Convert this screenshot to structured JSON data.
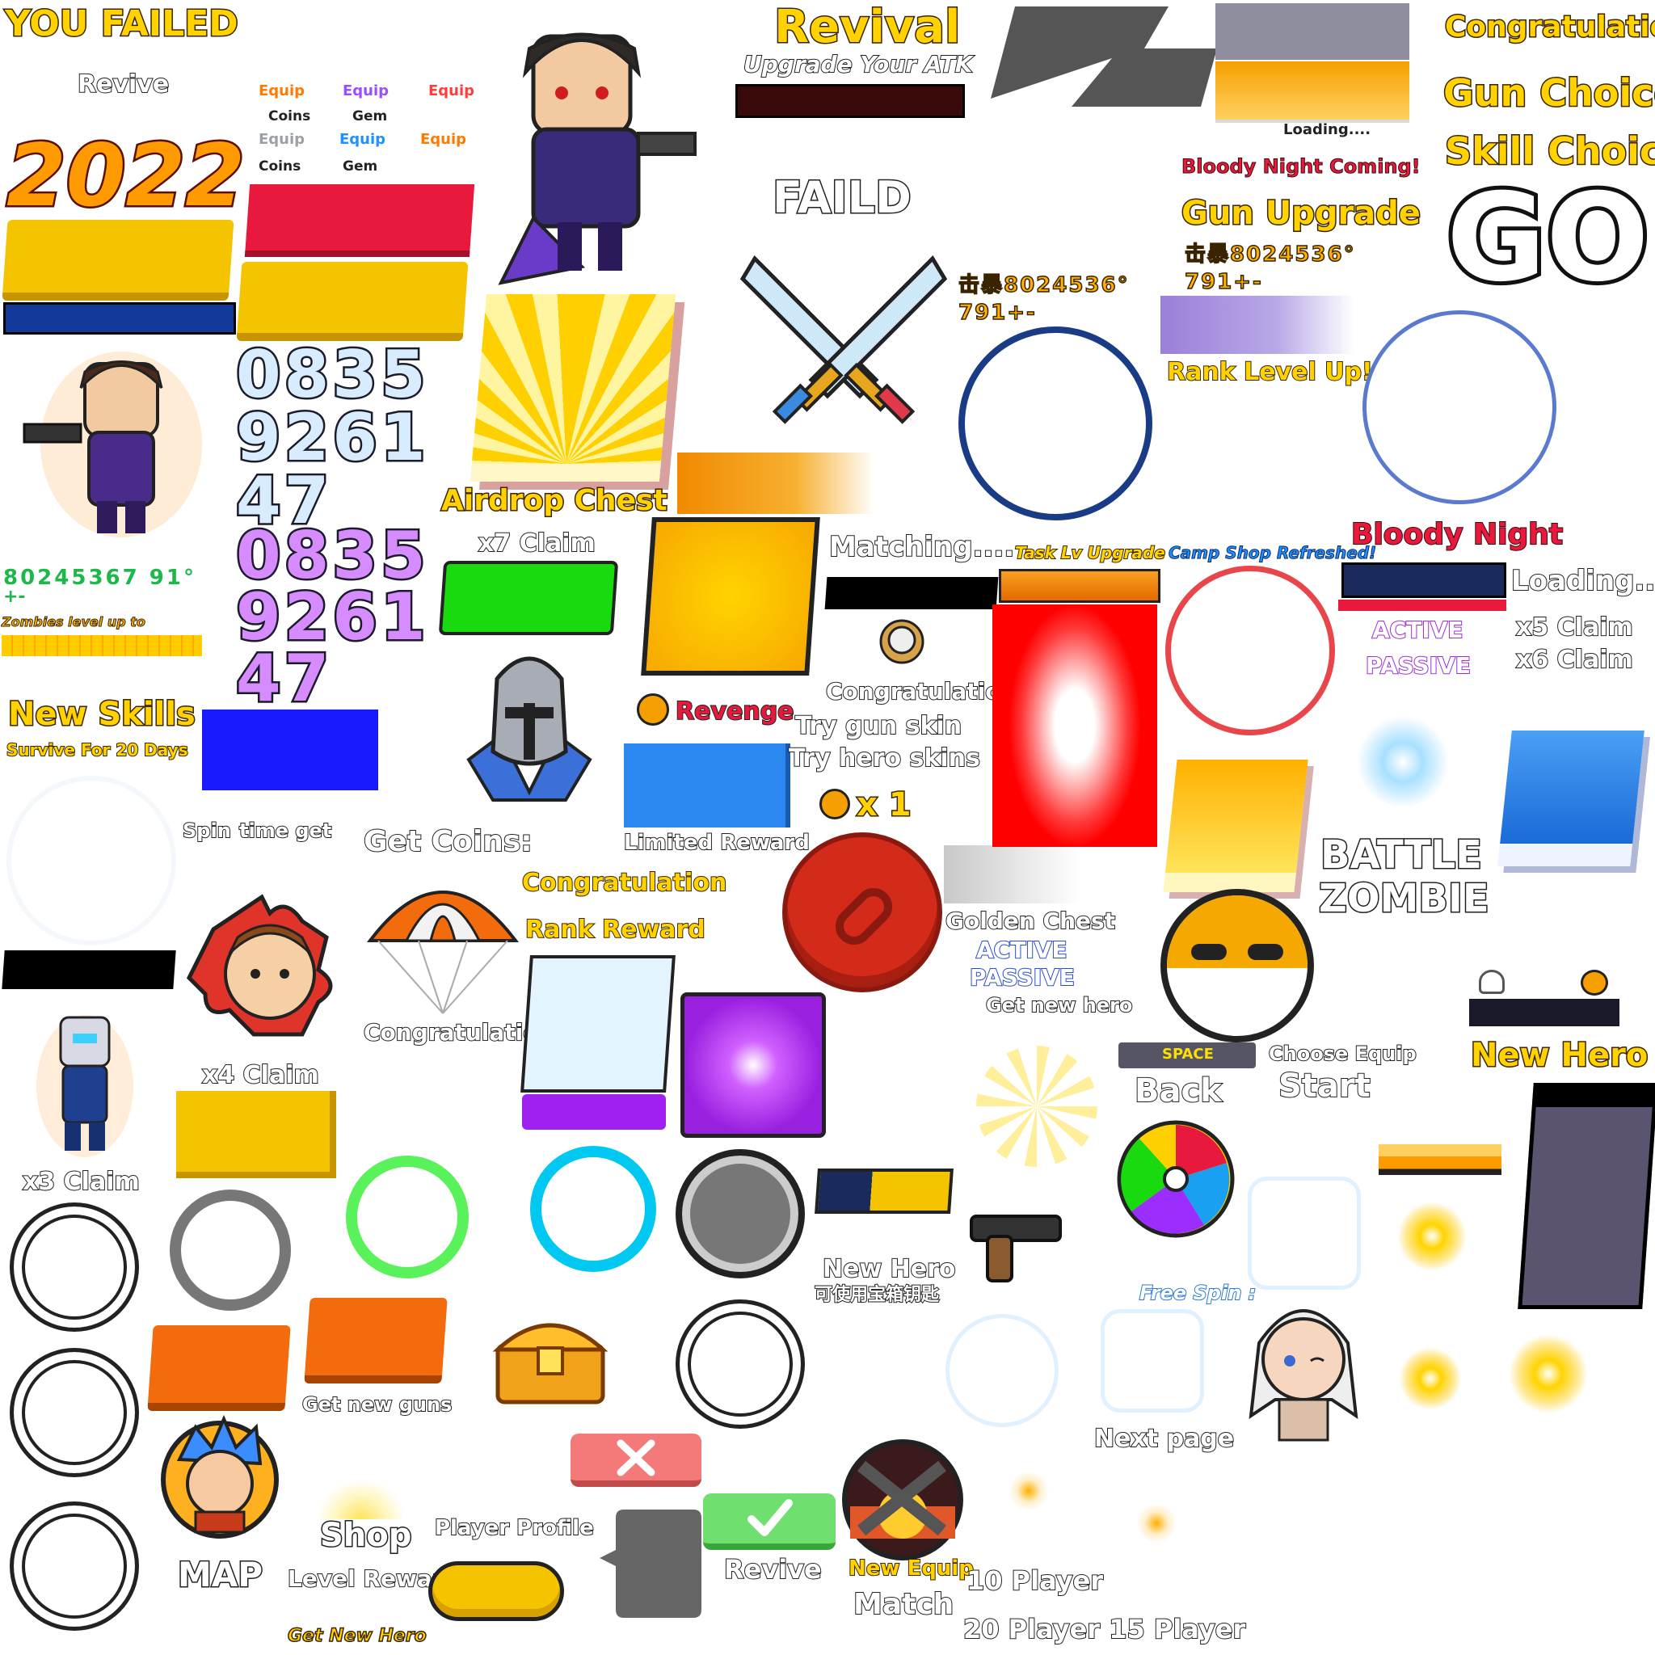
{
  "labels": {
    "you_failed": "YOU FAILED",
    "revive_top": "Revive",
    "year": "2022",
    "revival": "Revival",
    "upgrade_atk": "Upgrade Your ATK",
    "faild": "FAILD",
    "loading_small": "Loading....",
    "bloody_night_coming": "Bloody Night Coming!",
    "gun_upgrade": "Gun Upgrade",
    "congratulation_top": "Congratulation",
    "gun_choice": "Gun Choice",
    "skill_choice": "Skill Choice",
    "go": "GO",
    "rank_level_up": "Rank Level Up!",
    "airdrop_chest": "Airdrop Chest",
    "x7_claim": "x7 Claim",
    "matching": "Matching....",
    "task_lv_upgrade": "Task Lv Upgrade",
    "camp_shop_refreshed": "Camp Shop Refreshed!",
    "bloody_night": "Bloody Night",
    "loading_big": "Loading....",
    "active_1": "ACTIVE",
    "passive_1": "PASSIVE",
    "x5_claim": "x5 Claim",
    "x6_claim": "x6 Claim",
    "zombies_level": "Zombies level up to",
    "new_skills": "New Skills",
    "survive_days": "Survive For 20 Days",
    "spin": "Spin",
    "time_get": "time get",
    "get_coins": "Get Coins:",
    "revenge": "Revenge",
    "congratulation_mid": "Congratulation",
    "try_gun_skin": "Try gun skin",
    "try_hero_skins": "Try hero skins",
    "skull_count": "x 1",
    "limited_reward": "Limited Reward",
    "congratulation_chute": "Congratulation",
    "rank_reward": "Rank Reward",
    "golden_chest": "Golden Chest",
    "active_2": "ACTIVE",
    "passive_2": "PASSIVE",
    "get_new_hero_small": "Get new hero",
    "battle": "BATTLE",
    "zombie": "ZOMBIE",
    "congratulation_low": "Congratulation",
    "x4_claim": "x4 Claim",
    "x3_claim": "x3 Claim",
    "space": "SPACE",
    "back": "Back",
    "choose_equip": "Choose Equip",
    "start": "Start",
    "new_hero_right": "New Hero",
    "new_hero_mid": "New Hero",
    "chest_key_cn": "可使用宝箱钥匙",
    "free_spin": "Free Spin :",
    "get_new_guns": "Get new guns",
    "next_page": "Next page",
    "shop": "Shop",
    "player_profile": "Player Profile",
    "level_reward": "Level Reward",
    "map": "MAP",
    "revive_bottom": "Revive",
    "new_equip": "New Equip",
    "match": "Match",
    "p10": "10 Player",
    "p20_15": "20 Player 15 Player",
    "get_new_hero_bottom": "Get New Hero",
    "digits_small": "80245367 91°",
    "digits_small2": "+-",
    "cn_crit_1": "击暴8024536°",
    "cn_crit_1b": "791+-",
    "cn_crit_2": "击暴8024536°",
    "cn_crit_2b": "791+-"
  },
  "equip_items": [
    {
      "label": "Equip",
      "color": "#ff7a00"
    },
    {
      "label": "Equip",
      "color": "#9b4dff"
    },
    {
      "label": "Equip",
      "color": "#ff3d3d"
    },
    {
      "label": "Coins",
      "color": "#222222"
    },
    {
      "label": "Gem",
      "color": "#222222"
    },
    {
      "label": "Equip",
      "color": "#9aa0a6"
    },
    {
      "label": "Equip",
      "color": "#1e90ff"
    },
    {
      "label": "Equip",
      "color": "#ff7a00"
    },
    {
      "label": "Coins",
      "color": "#222222"
    },
    {
      "label": "Gem",
      "color": "#222222"
    }
  ],
  "digit_rows_blue": [
    "0835",
    "9261",
    "47"
  ],
  "digit_rows_purple": [
    "0835",
    "9261",
    "47"
  ],
  "colors": {
    "yellow": "#f5c400",
    "red": "#e8193c",
    "green": "#19d90f",
    "blue_bar": "#123a9a",
    "purple": "#a020f0",
    "orange": "#f26b0c",
    "navy_ring": "#1a3b85",
    "bright_blue_ring": "#5a7ad0"
  }
}
